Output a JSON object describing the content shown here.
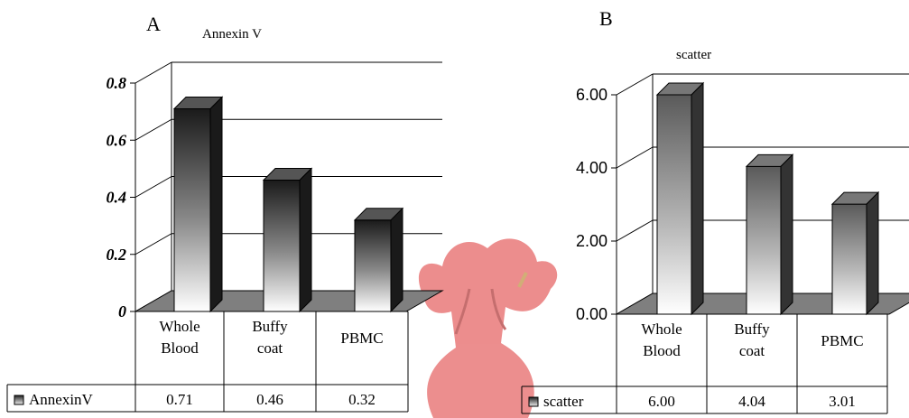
{
  "chart_data": [
    {
      "panel_label": "A",
      "type": "bar",
      "title": "Annexin V",
      "categories": [
        "Whole Blood",
        "Buffy coat",
        "PBMC"
      ],
      "series": [
        {
          "name": "AnnexinV",
          "values": [
            0.71,
            0.46,
            0.32
          ]
        }
      ],
      "table_values": [
        "0.71",
        "0.46",
        "0.32"
      ],
      "ylim": [
        0,
        0.8
      ],
      "yticks": [
        "0",
        "0.2",
        "0.4",
        "0.6",
        "0.8"
      ],
      "grid": true,
      "legend": "data-table-left"
    },
    {
      "panel_label": "B",
      "type": "bar",
      "title": "scatter",
      "categories": [
        "Whole Blood",
        "Buffy coat",
        "PBMC"
      ],
      "series": [
        {
          "name": "scatter",
          "values": [
            6.0,
            4.04,
            3.01
          ]
        }
      ],
      "table_values": [
        "6.00",
        "4.04",
        "3.01"
      ],
      "ylim": [
        0,
        6
      ],
      "yticks": [
        "0.00",
        "2.00",
        "4.00",
        "6.00"
      ],
      "grid": true,
      "legend": "data-table-left"
    }
  ]
}
